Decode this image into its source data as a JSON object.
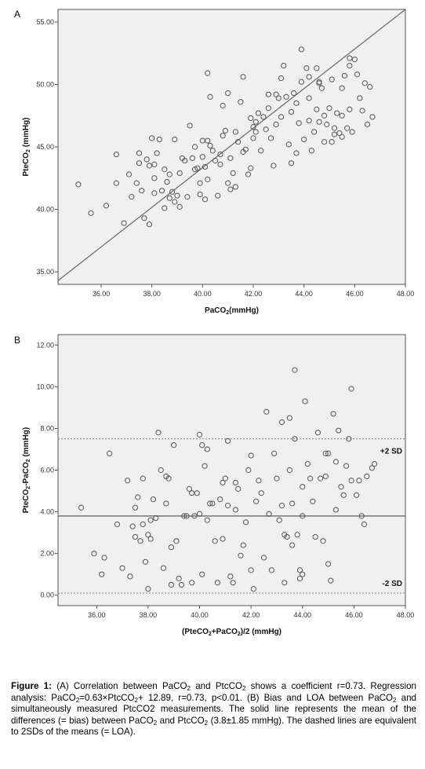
{
  "chart_data": [
    {
      "type": "scatter",
      "panel": "A",
      "xlabel_main": "PaCO",
      "xlabel_sub": "2",
      "xlabel_tail": "(mmHg)",
      "ylabel_main": "PteCO",
      "ylabel_sub": "2",
      "ylabel_tail": " (mmHg)",
      "xlim": [
        34.3,
        48.0
      ],
      "ylim": [
        34.0,
        56.0
      ],
      "xticks": [
        "36.00",
        "38.00",
        "40.00",
        "42.00",
        "44.00",
        "46.00",
        "48.00"
      ],
      "yticks": [
        "35.00",
        "40.00",
        "45.00",
        "50.00",
        "55.00"
      ],
      "identity_line": [
        [
          34.3,
          34.3
        ],
        [
          48.0,
          56.0
        ]
      ],
      "points": [
        [
          35.1,
          42.0
        ],
        [
          35.6,
          39.7
        ],
        [
          36.2,
          40.3
        ],
        [
          36.6,
          44.4
        ],
        [
          36.6,
          42.1
        ],
        [
          36.9,
          38.9
        ],
        [
          37.1,
          42.8
        ],
        [
          37.2,
          41.0
        ],
        [
          37.4,
          42.1
        ],
        [
          37.5,
          44.5
        ],
        [
          37.5,
          43.7
        ],
        [
          37.6,
          41.5
        ],
        [
          37.7,
          39.3
        ],
        [
          37.8,
          44.0
        ],
        [
          37.9,
          43.5
        ],
        [
          37.9,
          38.8
        ],
        [
          38.0,
          45.7
        ],
        [
          38.1,
          43.6
        ],
        [
          38.1,
          41.3
        ],
        [
          38.1,
          42.5
        ],
        [
          38.2,
          44.5
        ],
        [
          38.3,
          45.6
        ],
        [
          38.4,
          41.5
        ],
        [
          38.5,
          43.2
        ],
        [
          38.5,
          40.1
        ],
        [
          38.6,
          42.2
        ],
        [
          38.7,
          40.9
        ],
        [
          38.7,
          42.8
        ],
        [
          38.8,
          41.4
        ],
        [
          38.9,
          40.6
        ],
        [
          38.9,
          45.6
        ],
        [
          39.0,
          41.1
        ],
        [
          39.1,
          40.2
        ],
        [
          39.1,
          42.9
        ],
        [
          39.2,
          44.1
        ],
        [
          39.3,
          43.9
        ],
        [
          39.4,
          41.0
        ],
        [
          39.5,
          46.7
        ],
        [
          39.6,
          44.1
        ],
        [
          39.7,
          43.2
        ],
        [
          39.7,
          45.0
        ],
        [
          39.8,
          43.3
        ],
        [
          39.9,
          42.1
        ],
        [
          39.9,
          41.2
        ],
        [
          40.0,
          45.5
        ],
        [
          40.0,
          44.2
        ],
        [
          40.1,
          40.8
        ],
        [
          40.1,
          43.4
        ],
        [
          40.2,
          42.4
        ],
        [
          40.2,
          45.5
        ],
        [
          40.2,
          50.9
        ],
        [
          40.3,
          49.0
        ],
        [
          40.3,
          45.1
        ],
        [
          40.4,
          44.7
        ],
        [
          40.5,
          43.9
        ],
        [
          40.6,
          41.1
        ],
        [
          40.7,
          43.6
        ],
        [
          40.7,
          44.4
        ],
        [
          40.8,
          45.9
        ],
        [
          40.8,
          48.3
        ],
        [
          40.9,
          46.3
        ],
        [
          41.0,
          42.1
        ],
        [
          41.0,
          49.3
        ],
        [
          41.1,
          44.1
        ],
        [
          41.1,
          41.6
        ],
        [
          41.2,
          42.9
        ],
        [
          41.3,
          46.2
        ],
        [
          41.3,
          41.8
        ],
        [
          41.4,
          45.4
        ],
        [
          41.5,
          48.6
        ],
        [
          41.6,
          44.6
        ],
        [
          41.6,
          50.6
        ],
        [
          41.7,
          44.8
        ],
        [
          41.8,
          42.8
        ],
        [
          41.9,
          43.3
        ],
        [
          42.0,
          45.7
        ],
        [
          42.0,
          46.6
        ],
        [
          42.1,
          47.0
        ],
        [
          42.1,
          46.2
        ],
        [
          42.2,
          47.7
        ],
        [
          42.3,
          44.7
        ],
        [
          42.4,
          47.4
        ],
        [
          42.5,
          46.4
        ],
        [
          42.6,
          48.1
        ],
        [
          42.7,
          45.7
        ],
        [
          42.8,
          43.5
        ],
        [
          42.9,
          46.8
        ],
        [
          42.9,
          49.2
        ],
        [
          43.0,
          48.9
        ],
        [
          43.1,
          47.4
        ],
        [
          43.2,
          51.5
        ],
        [
          43.3,
          49.0
        ],
        [
          43.4,
          45.2
        ],
        [
          43.5,
          43.7
        ],
        [
          43.5,
          47.8
        ],
        [
          43.6,
          49.3
        ],
        [
          43.7,
          44.5
        ],
        [
          43.7,
          48.5
        ],
        [
          43.8,
          46.9
        ],
        [
          43.9,
          52.8
        ],
        [
          43.9,
          50.2
        ],
        [
          44.0,
          45.6
        ],
        [
          44.1,
          51.3
        ],
        [
          44.2,
          47.1
        ],
        [
          44.2,
          48.9
        ],
        [
          44.3,
          44.7
        ],
        [
          44.4,
          46.2
        ],
        [
          44.5,
          51.3
        ],
        [
          44.5,
          48.0
        ],
        [
          44.6,
          47.0
        ],
        [
          44.6,
          50.1
        ],
        [
          44.7,
          49.7
        ],
        [
          44.8,
          45.4
        ],
        [
          44.8,
          47.5
        ],
        [
          44.9,
          46.8
        ],
        [
          45.0,
          48.1
        ],
        [
          45.1,
          45.4
        ],
        [
          45.1,
          50.4
        ],
        [
          45.2,
          46.5
        ],
        [
          45.3,
          47.7
        ],
        [
          45.4,
          46.1
        ],
        [
          45.5,
          49.7
        ],
        [
          45.5,
          45.8
        ],
        [
          45.6,
          50.7
        ],
        [
          45.7,
          46.5
        ],
        [
          45.8,
          48.0
        ],
        [
          45.8,
          51.5
        ],
        [
          45.9,
          46.2
        ],
        [
          46.0,
          52.0
        ],
        [
          46.1,
          50.8
        ],
        [
          46.2,
          48.9
        ],
        [
          46.3,
          47.9
        ],
        [
          46.4,
          50.1
        ],
        [
          46.5,
          46.8
        ],
        [
          46.6,
          49.8
        ],
        [
          46.7,
          47.4
        ],
        [
          45.2,
          46.0
        ],
        [
          44.6,
          50.2
        ],
        [
          44.2,
          50.6
        ],
        [
          43.1,
          50.5
        ],
        [
          42.6,
          49.2
        ],
        [
          41.9,
          47.3
        ],
        [
          45.5,
          47.5
        ],
        [
          45.8,
          52.1
        ]
      ]
    },
    {
      "type": "scatter",
      "panel": "B",
      "xlabel_main": "(PteCO",
      "xlabel_sub1": "2",
      "xlabel_mid": "+PaCO",
      "xlabel_sub2": "2",
      "xlabel_tail": ")/2 (mmHg)",
      "ylabel_main": "PteCO",
      "ylabel_sub1": "2",
      "ylabel_mid": "-PaCO",
      "ylabel_sub2": "2",
      "ylabel_tail": " (mmHg)",
      "xlim": [
        34.5,
        48.0
      ],
      "ylim": [
        -0.5,
        12.5
      ],
      "xticks": [
        "36.00",
        "38.00",
        "40.00",
        "42.00",
        "44.00",
        "46.00",
        "48.00"
      ],
      "yticks": [
        "0.00",
        "2.00",
        "4.00",
        "6.00",
        "8.00",
        "10.00",
        "12.00"
      ],
      "bias": 3.8,
      "upper_loa": 7.5,
      "lower_loa": 0.1,
      "upper_label": "+2 SD",
      "lower_label": "-2 SD",
      "points": [
        [
          35.4,
          4.2
        ],
        [
          35.9,
          2.0
        ],
        [
          36.2,
          1.0
        ],
        [
          36.3,
          1.8
        ],
        [
          36.5,
          6.8
        ],
        [
          36.8,
          3.4
        ],
        [
          37.0,
          1.3
        ],
        [
          37.2,
          5.5
        ],
        [
          37.3,
          0.9
        ],
        [
          37.4,
          3.3
        ],
        [
          37.5,
          4.2
        ],
        [
          37.5,
          2.8
        ],
        [
          37.6,
          4.7
        ],
        [
          37.7,
          2.6
        ],
        [
          37.8,
          5.6
        ],
        [
          37.8,
          3.4
        ],
        [
          37.9,
          1.6
        ],
        [
          38.0,
          0.3
        ],
        [
          38.0,
          2.9
        ],
        [
          38.1,
          3.6
        ],
        [
          38.1,
          2.7
        ],
        [
          38.2,
          4.6
        ],
        [
          38.3,
          3.7
        ],
        [
          38.4,
          7.8
        ],
        [
          38.5,
          6.0
        ],
        [
          38.6,
          1.3
        ],
        [
          38.7,
          5.7
        ],
        [
          38.7,
          4.4
        ],
        [
          38.8,
          5.6
        ],
        [
          38.9,
          2.3
        ],
        [
          38.9,
          0.5
        ],
        [
          39.0,
          7.2
        ],
        [
          39.1,
          2.6
        ],
        [
          39.2,
          0.8
        ],
        [
          39.3,
          0.5
        ],
        [
          39.4,
          3.8
        ],
        [
          39.5,
          3.8
        ],
        [
          39.6,
          5.1
        ],
        [
          39.7,
          0.6
        ],
        [
          39.8,
          3.8
        ],
        [
          39.9,
          4.9
        ],
        [
          40.0,
          7.7
        ],
        [
          40.0,
          3.9
        ],
        [
          40.1,
          7.2
        ],
        [
          40.1,
          1.0
        ],
        [
          40.2,
          6.2
        ],
        [
          40.3,
          7.0
        ],
        [
          40.3,
          3.6
        ],
        [
          40.4,
          4.4
        ],
        [
          40.5,
          4.4
        ],
        [
          40.6,
          2.6
        ],
        [
          40.7,
          0.6
        ],
        [
          40.8,
          4.6
        ],
        [
          40.9,
          5.4
        ],
        [
          41.0,
          5.6
        ],
        [
          41.1,
          4.3
        ],
        [
          41.1,
          7.4
        ],
        [
          41.2,
          0.9
        ],
        [
          41.3,
          0.6
        ],
        [
          41.4,
          4.1
        ],
        [
          41.5,
          5.1
        ],
        [
          41.6,
          1.9
        ],
        [
          41.7,
          2.4
        ],
        [
          41.8,
          3.5
        ],
        [
          41.9,
          6.0
        ],
        [
          42.0,
          1.2
        ],
        [
          42.1,
          0.3
        ],
        [
          42.2,
          4.5
        ],
        [
          42.3,
          5.5
        ],
        [
          42.4,
          4.9
        ],
        [
          42.5,
          1.8
        ],
        [
          42.6,
          8.8
        ],
        [
          42.7,
          3.9
        ],
        [
          42.8,
          1.2
        ],
        [
          42.9,
          6.8
        ],
        [
          43.0,
          5.6
        ],
        [
          43.1,
          3.6
        ],
        [
          43.2,
          4.3
        ],
        [
          43.2,
          8.3
        ],
        [
          43.3,
          0.6
        ],
        [
          43.4,
          2.8
        ],
        [
          43.5,
          6.0
        ],
        [
          43.5,
          8.5
        ],
        [
          43.6,
          4.4
        ],
        [
          43.7,
          7.5
        ],
        [
          43.7,
          10.8
        ],
        [
          43.8,
          2.9
        ],
        [
          43.9,
          0.8
        ],
        [
          44.0,
          3.8
        ],
        [
          44.0,
          5.2
        ],
        [
          44.1,
          9.3
        ],
        [
          44.2,
          6.3
        ],
        [
          44.3,
          5.6
        ],
        [
          44.4,
          4.5
        ],
        [
          44.5,
          2.8
        ],
        [
          44.6,
          7.8
        ],
        [
          44.7,
          5.6
        ],
        [
          44.8,
          2.6
        ],
        [
          44.9,
          5.7
        ],
        [
          45.0,
          6.8
        ],
        [
          45.1,
          0.7
        ],
        [
          45.2,
          8.7
        ],
        [
          45.3,
          6.4
        ],
        [
          45.4,
          7.9
        ],
        [
          45.5,
          5.2
        ],
        [
          45.6,
          4.8
        ],
        [
          45.7,
          6.2
        ],
        [
          45.8,
          7.5
        ],
        [
          45.9,
          5.5
        ],
        [
          45.9,
          9.9
        ],
        [
          46.1,
          4.8
        ],
        [
          46.2,
          5.5
        ],
        [
          46.3,
          3.8
        ],
        [
          46.4,
          3.4
        ],
        [
          46.5,
          5.7
        ],
        [
          46.7,
          6.1
        ],
        [
          46.8,
          6.3
        ],
        [
          43.9,
          1.2
        ],
        [
          44.0,
          1.0
        ],
        [
          43.6,
          2.4
        ],
        [
          43.3,
          2.9
        ],
        [
          42.0,
          6.7
        ],
        [
          44.9,
          6.8
        ],
        [
          45.0,
          1.5
        ],
        [
          45.3,
          4.1
        ],
        [
          41.4,
          5.4
        ],
        [
          40.9,
          2.7
        ],
        [
          39.7,
          4.9
        ]
      ]
    }
  ],
  "figure": {
    "panel_a_letter": "A",
    "panel_b_letter": "B"
  },
  "caption": {
    "label": "Figure 1:",
    "t1": " (A) Correlation between PaCO",
    "s1": "2",
    "t2": " and PtcCO",
    "s2": "2",
    "t3": " shows a coefficient r=0.73. Regression analysis: PaCO",
    "s3": "2",
    "t4": "=0.63×PtcCO",
    "s4": "2",
    "t5": "+ 12.89, r=0.73, p<0.01. (B) Bias and LOA between PaCO",
    "s5": "2",
    "t6": " and simultaneously measured PtcCO2 measurements. The solid line represents the mean of the differences (= bias) between PaCO",
    "s6": "2",
    "t7": " and PtcCO",
    "s7": "2",
    "t8": " (3.8±1.85 mmHg). The dashed lines are equivalent to 2SDs of the means (= LOA)."
  }
}
